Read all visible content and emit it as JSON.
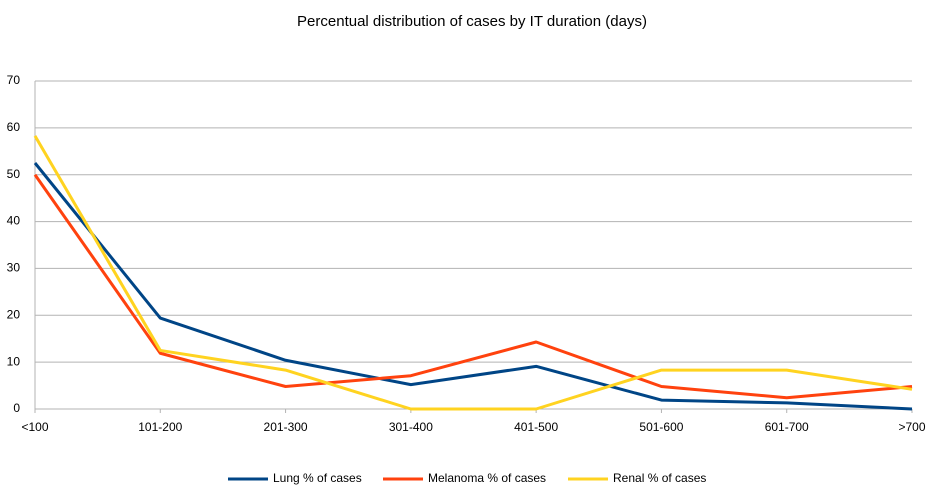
{
  "chart_data": {
    "type": "line",
    "title": "Percentual distribution of cases by IT duration (days)",
    "categories": [
      "<100",
      "101-200",
      "201-300",
      "301-400",
      "401-500",
      "501-600",
      "601-700",
      ">700"
    ],
    "series": [
      {
        "name": "Lung % of cases",
        "color": "#004586",
        "values": [
          52.5,
          19.4,
          10.4,
          5.2,
          9.1,
          1.9,
          1.3,
          0
        ]
      },
      {
        "name": "Melanoma % of cases",
        "color": "#ff420e",
        "values": [
          50,
          11.9,
          4.8,
          7.1,
          14.3,
          4.8,
          2.4,
          4.8
        ]
      },
      {
        "name": "Renal % of cases",
        "color": "#ffd320",
        "values": [
          58.3,
          12.5,
          8.3,
          0,
          0,
          8.3,
          8.3,
          4.2
        ]
      }
    ],
    "ylim": [
      0,
      70
    ],
    "yticks": [
      0,
      10,
      20,
      30,
      40,
      50,
      60,
      70
    ],
    "grid": true,
    "legend": "bottom"
  }
}
